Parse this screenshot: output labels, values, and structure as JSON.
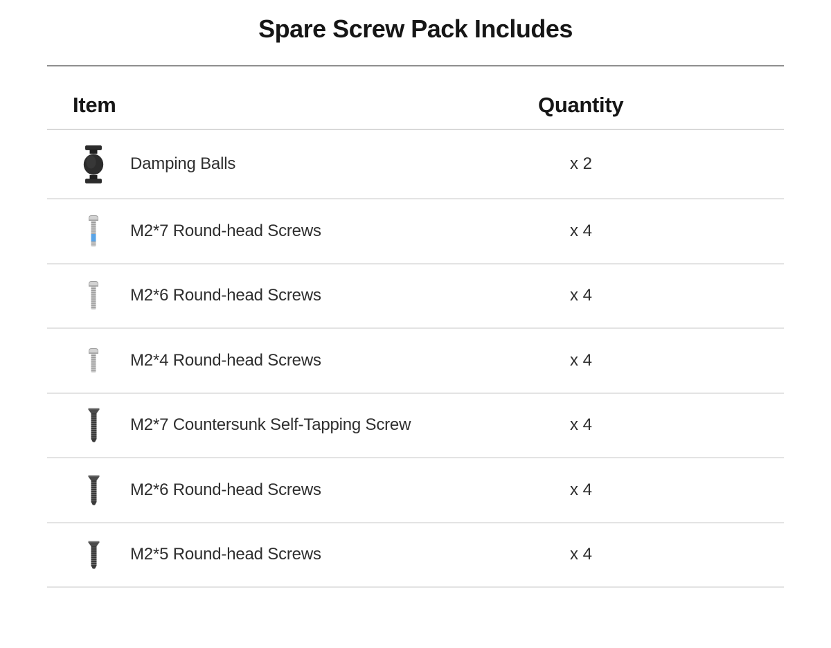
{
  "title": "Spare Screw Pack Includes",
  "table": {
    "headers": {
      "item": "Item",
      "quantity": "Quantity"
    },
    "rows": [
      {
        "icon": "damping-ball",
        "label": "Damping Balls",
        "quantity": "x 2"
      },
      {
        "icon": "screw-m2x7-round-silver-blue",
        "label": "M2*7 Round-head Screws",
        "quantity": "x 4"
      },
      {
        "icon": "screw-m2x6-round-silver",
        "label": "M2*6 Round-head Screws",
        "quantity": "x 4"
      },
      {
        "icon": "screw-m2x4-round-silver",
        "label": "M2*4 Round-head Screws",
        "quantity": "x 4"
      },
      {
        "icon": "screw-m2x7-countersunk-dark",
        "label": "M2*7 Countersunk Self-Tapping Screw",
        "quantity": "x 4"
      },
      {
        "icon": "screw-m2x6-round-dark",
        "label": "M2*6 Round-head Screws",
        "quantity": "x 4"
      },
      {
        "icon": "screw-m2x5-round-dark",
        "label": "M2*5 Round-head Screws",
        "quantity": "x 4"
      }
    ]
  },
  "colors": {
    "title_text": "#161616",
    "body_text": "#2f2f2f",
    "title_divider": "#8f8f8f",
    "header_divider": "#d9d9d9",
    "row_divider": "#e3e3e3",
    "screw_silver": "#c6c6c6",
    "screw_silver_head": "#d2d2d2",
    "screw_dark": "#3a3a3a",
    "screw_dark_head": "#4a4a4a",
    "thread_locker_blue": "#5ba4e6",
    "damping_ball": "#2c2c2c"
  }
}
